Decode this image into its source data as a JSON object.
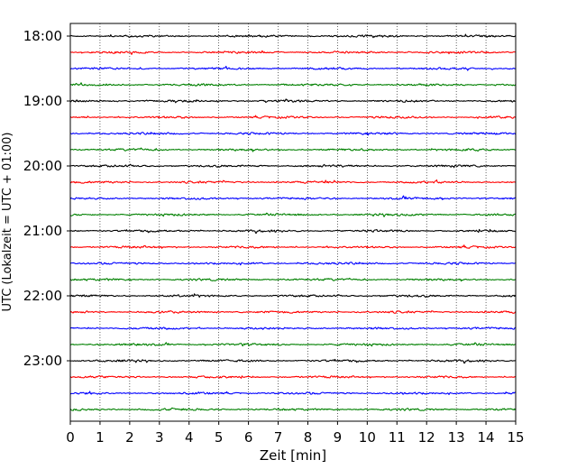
{
  "chart_data": {
    "type": "line",
    "title": "",
    "xlabel": "Zeit  [min]",
    "ylabel": "UTC (Lokalzeit = UTC + 01:00)",
    "xlim": [
      0,
      15
    ],
    "x_ticks": [
      "0",
      "1",
      "2",
      "3",
      "4",
      "5",
      "6",
      "7",
      "8",
      "9",
      "10",
      "11",
      "12",
      "13",
      "14",
      "15"
    ],
    "y_ticks": [
      "18:00",
      "19:00",
      "20:00",
      "21:00",
      "22:00",
      "23:00"
    ],
    "grid": "vertical dotted lines at each minute",
    "trace_interval": "15 min per row",
    "color_cycle": [
      "#000000",
      "#ff0000",
      "#0000ff",
      "#008000"
    ],
    "rows": [
      {
        "start": "18:00",
        "color": "#000000"
      },
      {
        "start": "18:15",
        "color": "#ff0000"
      },
      {
        "start": "18:30",
        "color": "#0000ff"
      },
      {
        "start": "18:45",
        "color": "#008000"
      },
      {
        "start": "19:00",
        "color": "#000000"
      },
      {
        "start": "19:15",
        "color": "#ff0000"
      },
      {
        "start": "19:30",
        "color": "#0000ff"
      },
      {
        "start": "19:45",
        "color": "#008000"
      },
      {
        "start": "20:00",
        "color": "#000000"
      },
      {
        "start": "20:15",
        "color": "#ff0000"
      },
      {
        "start": "20:30",
        "color": "#0000ff"
      },
      {
        "start": "20:45",
        "color": "#008000"
      },
      {
        "start": "21:00",
        "color": "#000000"
      },
      {
        "start": "21:15",
        "color": "#ff0000"
      },
      {
        "start": "21:30",
        "color": "#0000ff"
      },
      {
        "start": "21:45",
        "color": "#008000"
      },
      {
        "start": "22:00",
        "color": "#000000"
      },
      {
        "start": "22:15",
        "color": "#ff0000"
      },
      {
        "start": "22:30",
        "color": "#0000ff"
      },
      {
        "start": "22:45",
        "color": "#008000"
      },
      {
        "start": "23:00",
        "color": "#000000"
      },
      {
        "start": "23:15",
        "color": "#ff0000"
      },
      {
        "start": "23:30",
        "color": "#0000ff"
      },
      {
        "start": "23:45",
        "color": "#008000"
      }
    ]
  }
}
